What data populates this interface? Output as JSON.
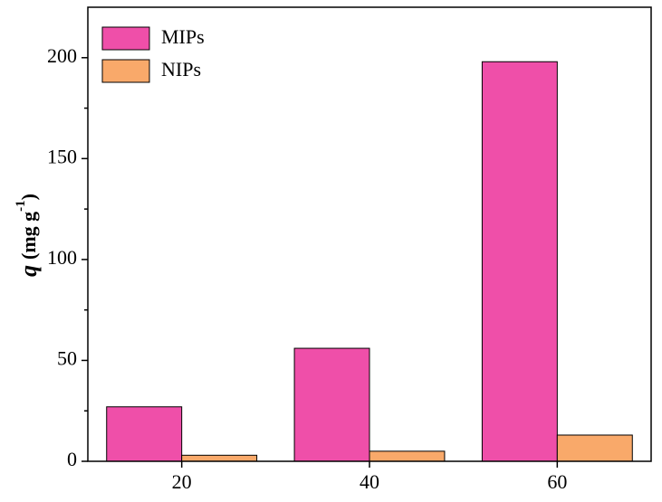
{
  "chart_data": {
    "type": "bar",
    "y_label": [
      "q",
      "(mg g",
      "-1",
      ")"
    ],
    "categories": [
      "20",
      "40",
      "60"
    ],
    "series": [
      {
        "name": "MIPs",
        "color": "#ef4fa9",
        "values": [
          27,
          56,
          198
        ]
      },
      {
        "name": "NIPs",
        "color": "#f9a96a",
        "values": [
          3,
          5,
          13
        ]
      }
    ],
    "ylim": [
      0,
      225
    ],
    "yticks": [
      0,
      50,
      100,
      150,
      200
    ],
    "yminorticks": [
      25,
      75,
      125,
      175
    ],
    "legend": "upper-left"
  }
}
